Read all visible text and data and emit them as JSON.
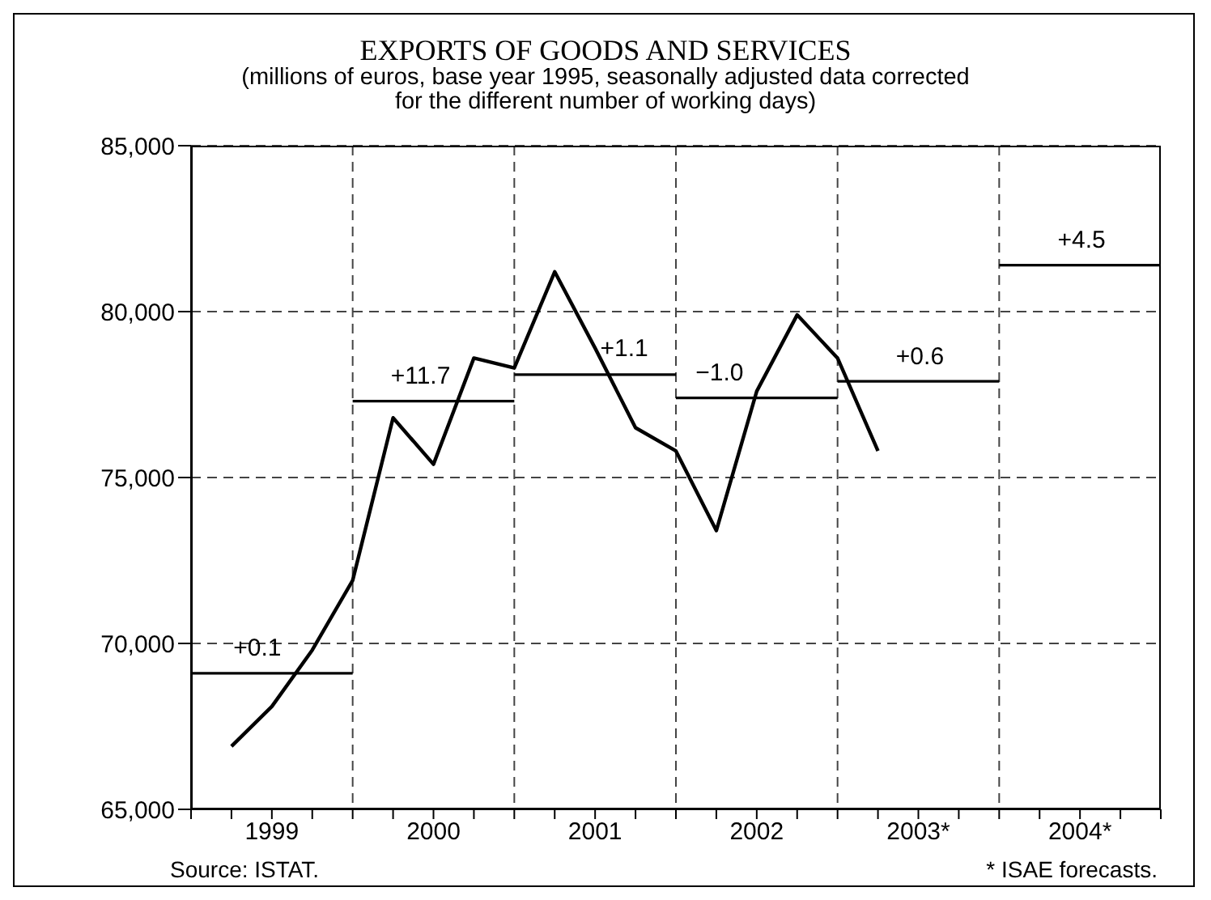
{
  "chart_data": {
    "type": "line",
    "title": "EXPORTS OF GOODS AND SERVICES",
    "subtitle": "(millions of euros, base year 1995, seasonally adjusted data corrected for the different number of working days)",
    "x": [
      1999.25,
      1999.5,
      1999.75,
      2000,
      2000.25,
      2000.5,
      2000.75,
      2001,
      2001.25,
      2001.5,
      2001.75,
      2002,
      2002.25,
      2002.5,
      2002.75,
      2003,
      2003.25
    ],
    "series": [
      {
        "color": "#000000",
        "values": [
          66900,
          68100,
          69800,
          71900,
          76800,
          75400,
          78600,
          78300,
          81200,
          78900,
          76500,
          75800,
          73400,
          77600,
          79900,
          78600,
          75800
        ]
      },
      {
        "color": "#000000",
        "x": [
          1999,
          2000
        ],
        "values": [
          69100,
          69100
        ]
      },
      {
        "color": "#000000",
        "x": [
          2000,
          2001
        ],
        "values": [
          77300,
          77300
        ]
      },
      {
        "color": "#000000",
        "x": [
          2001,
          2002
        ],
        "values": [
          78100,
          78100
        ]
      },
      {
        "color": "#000000",
        "x": [
          2002,
          2003
        ],
        "values": [
          77400,
          77400
        ]
      },
      {
        "color": "#000000",
        "x": [
          2003,
          2004
        ],
        "values": [
          77900,
          77900
        ]
      },
      {
        "color": "#000000",
        "x": [
          2004,
          2005
        ],
        "values": [
          81400,
          81400
        ]
      }
    ],
    "xlim": [
      1999,
      2005
    ],
    "xticks": [
      {
        "value": 1999,
        "label": null
      },
      {
        "value": 1999.25,
        "label": null
      },
      {
        "value": 1999.5,
        "label": "1999"
      },
      {
        "value": 1999.75,
        "label": null
      },
      {
        "value": 2000,
        "label": null
      },
      {
        "value": 2000.25,
        "label": null
      },
      {
        "value": 2000.5,
        "label": "2000"
      },
      {
        "value": 2000.75,
        "label": null
      },
      {
        "value": 2001,
        "label": null
      },
      {
        "value": 2001.25,
        "label": null
      },
      {
        "value": 2001.5,
        "label": "2001"
      },
      {
        "value": 2001.75,
        "label": null
      },
      {
        "value": 2002,
        "label": null
      },
      {
        "value": 2002.25,
        "label": null
      },
      {
        "value": 2002.5,
        "label": "2002"
      },
      {
        "value": 2002.75,
        "label": null
      },
      {
        "value": 2003,
        "label": null
      },
      {
        "value": 2003.25,
        "label": null
      },
      {
        "value": 2003.5,
        "label": "2003*"
      },
      {
        "value": 2003.75,
        "label": null
      },
      {
        "value": 2004,
        "label": null
      },
      {
        "value": 2004.25,
        "label": null
      },
      {
        "value": 2004.5,
        "label": "2004*"
      },
      {
        "value": 2004.75,
        "label": null
      },
      {
        "value": 2005,
        "label": null
      }
    ],
    "ylim": [
      65000,
      85000
    ],
    "yticks": [
      {
        "value": 65000,
        "label": "65,000"
      },
      {
        "value": 70000,
        "label": "70,000"
      },
      {
        "value": 75000,
        "label": "75,000"
      },
      {
        "value": 80000,
        "label": "80,000"
      },
      {
        "value": 85000,
        "label": "85,000"
      }
    ],
    "grid": true,
    "marker": "none",
    "line_style": "solid",
    "annotations": [
      {
        "text": "+0.1",
        "x": 1999.41,
        "y": 69100
      },
      {
        "text": "+11.7",
        "x": 2000.42,
        "y": 77300
      },
      {
        "text": "+1.1",
        "x": 2001.68,
        "y": 78100
      },
      {
        "text": "−1.0",
        "x": 2002.27,
        "y": 77400
      },
      {
        "text": "+0.6",
        "x": 2003.51,
        "y": 77900
      },
      {
        "text": "+4.5",
        "x": 2004.51,
        "y": 81400
      },
      "Source: ISTAT.",
      "* ISAE forecasts."
    ]
  }
}
